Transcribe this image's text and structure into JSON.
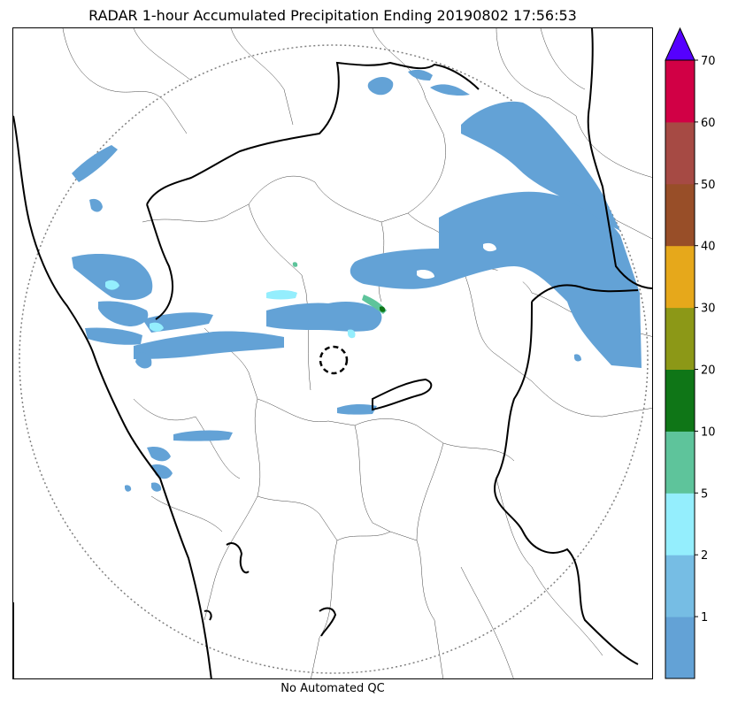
{
  "title": "RADAR 1-hour Accumulated Precipitation Ending 20190802 17:56:53",
  "footer": "No Automated QC",
  "colorbar": {
    "ticks": [
      "1",
      "2",
      "5",
      "10",
      "20",
      "30",
      "40",
      "50",
      "60",
      "70"
    ],
    "colors": [
      "#63a2d6",
      "#76bde4",
      "#94eefd",
      "#5ec49b",
      "#0f7617",
      "#8c9817",
      "#e6a81b",
      "#984e28",
      "#a64a44",
      "#d10045"
    ],
    "extend_color": "#5500ff"
  },
  "map": {
    "range_ring_color": "#808080",
    "boundary_color": "#000000",
    "precip_color": "#63a2d6"
  }
}
